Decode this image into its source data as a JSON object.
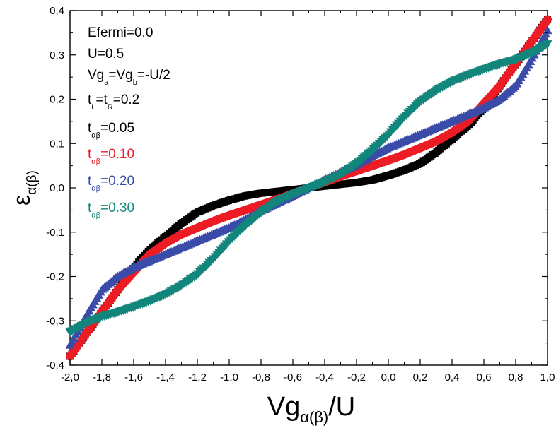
{
  "chart_data": {
    "type": "scatter",
    "title": "",
    "xlabel": {
      "main": "Vg",
      "sub": "α(β)",
      "tail": "/U"
    },
    "ylabel": {
      "main": "ε",
      "sub": "α(β)"
    },
    "xlim": [
      -2.0,
      1.0
    ],
    "ylim": [
      -0.4,
      0.4
    ],
    "x_ticks": [
      -2.0,
      -1.8,
      -1.6,
      -1.4,
      -1.2,
      -1.0,
      -0.8,
      -0.6,
      -0.4,
      -0.2,
      0.0,
      0.2,
      0.4,
      0.6,
      0.8,
      1.0
    ],
    "x_tick_labels": [
      "-2,0",
      "-1,8",
      "-1,6",
      "-1,4",
      "-1,2",
      "-1,0",
      "-0,8",
      "-0,6",
      "-0,4",
      "-0,2",
      "0,0",
      "0,2",
      "0,4",
      "0,6",
      "0,8",
      "1,0"
    ],
    "y_ticks": [
      -0.4,
      -0.3,
      -0.2,
      -0.1,
      0.0,
      0.1,
      0.2,
      0.3,
      0.4
    ],
    "y_tick_labels": [
      "-0,4",
      "-0,3",
      "-0,2",
      "-0,1",
      "0,0",
      "0,1",
      "0,2",
      "0,3",
      "0,4"
    ],
    "grid": false,
    "legend": "none",
    "annotations": [
      {
        "parts": [
          {
            "t": "Efermi=0.0"
          }
        ],
        "color": "#000000"
      },
      {
        "parts": [
          {
            "t": "U=0.5"
          }
        ],
        "color": "#000000"
      },
      {
        "parts": [
          {
            "t": "Vg"
          },
          {
            "t": "a",
            "sub": true
          },
          {
            "t": "=Vg"
          },
          {
            "t": "b",
            "sub": true
          },
          {
            "t": "=-U/2"
          }
        ],
        "color": "#000000"
      },
      {
        "parts": [
          {
            "t": "t"
          },
          {
            "t": "L",
            "sub": true
          },
          {
            "t": "=t"
          },
          {
            "t": "R",
            "sub": true
          },
          {
            "t": "=0.2"
          }
        ],
        "color": "#000000"
      },
      {
        "parts": [
          {
            "t": "t"
          },
          {
            "t": "αβ",
            "sub": true
          },
          {
            "t": "=0.05"
          }
        ],
        "color": "#000000"
      },
      {
        "parts": [
          {
            "t": "t"
          },
          {
            "t": "αβ",
            "sub": true
          },
          {
            "t": "=0.10"
          }
        ],
        "color": "#ed1c24"
      },
      {
        "parts": [
          {
            "t": "t"
          },
          {
            "t": "αβ",
            "sub": true
          },
          {
            "t": "=0.20"
          }
        ],
        "color": "#3b4ba8"
      },
      {
        "parts": [
          {
            "t": "t"
          },
          {
            "t": "αβ",
            "sub": true
          },
          {
            "t": "=0.30"
          }
        ],
        "color": "#13867c"
      }
    ],
    "series": [
      {
        "color": "#000000",
        "marker": "square",
        "x": [
          -2.0,
          -1.9,
          -1.8,
          -1.7,
          -1.6,
          -1.5,
          -1.4,
          -1.3,
          -1.2,
          -1.1,
          -1.0,
          -0.9,
          -0.8,
          -0.7,
          -0.6,
          -0.5,
          -0.4,
          -0.3,
          -0.2,
          -0.1,
          0.0,
          0.1,
          0.2,
          0.3,
          0.4,
          0.5,
          0.6,
          0.7,
          0.8,
          0.9,
          1.0
        ],
        "y": [
          -0.38,
          -0.33,
          -0.28,
          -0.23,
          -0.18,
          -0.14,
          -0.11,
          -0.08,
          -0.055,
          -0.04,
          -0.028,
          -0.018,
          -0.012,
          -0.008,
          -0.004,
          0.0,
          0.004,
          0.008,
          0.012,
          0.018,
          0.028,
          0.04,
          0.055,
          0.08,
          0.11,
          0.14,
          0.18,
          0.23,
          0.28,
          0.33,
          0.38
        ]
      },
      {
        "color": "#ed1c24",
        "marker": "circle",
        "x": [
          -2.0,
          -1.9,
          -1.8,
          -1.7,
          -1.6,
          -1.5,
          -1.4,
          -1.3,
          -1.2,
          -1.1,
          -1.0,
          -0.9,
          -0.8,
          -0.7,
          -0.6,
          -0.5,
          -0.4,
          -0.3,
          -0.2,
          -0.1,
          0.0,
          0.1,
          0.2,
          0.3,
          0.4,
          0.5,
          0.6,
          0.7,
          0.8,
          0.9,
          1.0
        ],
        "y": [
          -0.38,
          -0.33,
          -0.28,
          -0.23,
          -0.19,
          -0.15,
          -0.125,
          -0.105,
          -0.09,
          -0.075,
          -0.062,
          -0.05,
          -0.038,
          -0.026,
          -0.013,
          0.0,
          0.013,
          0.026,
          0.038,
          0.05,
          0.062,
          0.075,
          0.09,
          0.105,
          0.125,
          0.15,
          0.19,
          0.23,
          0.28,
          0.33,
          0.38
        ]
      },
      {
        "color": "#3b4ba8",
        "marker": "triangle",
        "x": [
          -2.0,
          -1.9,
          -1.8,
          -1.7,
          -1.6,
          -1.5,
          -1.4,
          -1.3,
          -1.2,
          -1.1,
          -1.0,
          -0.9,
          -0.8,
          -0.7,
          -0.6,
          -0.5,
          -0.4,
          -0.3,
          -0.2,
          -0.1,
          0.0,
          0.1,
          0.2,
          0.3,
          0.4,
          0.5,
          0.6,
          0.7,
          0.8,
          0.9,
          1.0
        ],
        "y": [
          -0.355,
          -0.29,
          -0.23,
          -0.2,
          -0.18,
          -0.165,
          -0.15,
          -0.135,
          -0.12,
          -0.105,
          -0.09,
          -0.072,
          -0.052,
          -0.035,
          -0.018,
          0.0,
          0.018,
          0.035,
          0.052,
          0.072,
          0.09,
          0.105,
          0.12,
          0.135,
          0.15,
          0.165,
          0.18,
          0.2,
          0.23,
          0.29,
          0.355
        ]
      },
      {
        "color": "#13867c",
        "marker": "triangle-down",
        "x": [
          -2.0,
          -1.9,
          -1.8,
          -1.7,
          -1.6,
          -1.5,
          -1.4,
          -1.3,
          -1.2,
          -1.1,
          -1.0,
          -0.9,
          -0.8,
          -0.7,
          -0.6,
          -0.5,
          -0.4,
          -0.3,
          -0.2,
          -0.1,
          0.0,
          0.1,
          0.2,
          0.3,
          0.4,
          0.5,
          0.6,
          0.7,
          0.8,
          0.9,
          1.0
        ],
        "y": [
          -0.325,
          -0.305,
          -0.29,
          -0.28,
          -0.268,
          -0.255,
          -0.24,
          -0.22,
          -0.195,
          -0.16,
          -0.12,
          -0.085,
          -0.055,
          -0.03,
          -0.014,
          0.0,
          0.014,
          0.03,
          0.055,
          0.085,
          0.12,
          0.16,
          0.195,
          0.22,
          0.24,
          0.255,
          0.268,
          0.28,
          0.29,
          0.305,
          0.325
        ]
      }
    ]
  }
}
